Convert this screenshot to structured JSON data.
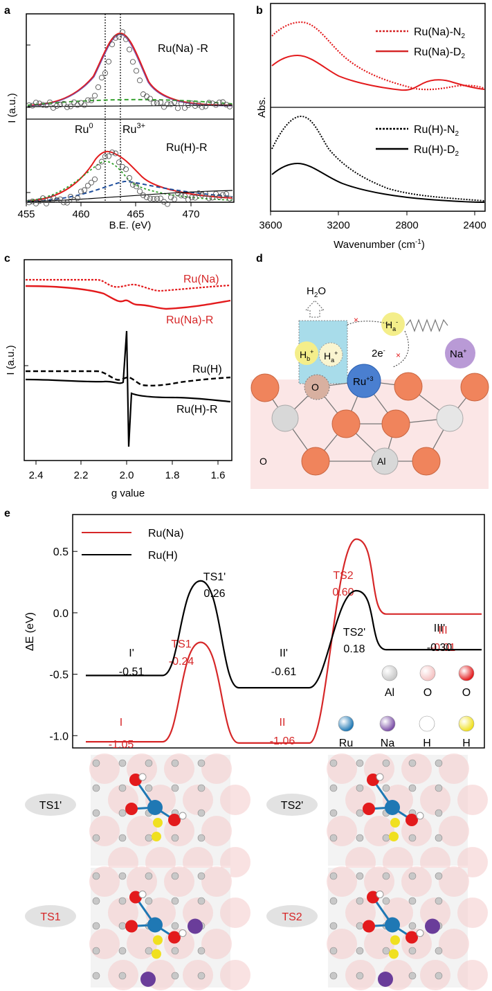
{
  "panels": {
    "a": {
      "letter": "a",
      "ylabel": "I (a.u.)",
      "xlabel": "B.E. (eV)",
      "xticks": [
        "455",
        "460",
        "465",
        "470"
      ],
      "label_top": "Ru(Na) -R",
      "label_bottom": "Ru(H)-R",
      "ru0": "Ru",
      "ru0_sup": "0",
      "ru3": "Ru",
      "ru3_sup": "3+"
    },
    "b": {
      "letter": "b",
      "ylabel": "Abs.",
      "xlabel": "Wavenumber (cm",
      "xlabel_sup": "-1",
      "xlabel_end": ")",
      "xticks": [
        "3600",
        "3200",
        "2800",
        "2400"
      ],
      "legend": [
        {
          "text": "Ru(Na)-N",
          "sub": "2",
          "color": "#d62728",
          "dash": true
        },
        {
          "text": "Ru(Na)-D",
          "sub": "2",
          "color": "#d62728",
          "dash": false
        },
        {
          "text": "Ru(H)-N",
          "sub": "2",
          "color": "#000000",
          "dash": true
        },
        {
          "text": "Ru(H)-D",
          "sub": "2",
          "color": "#000000",
          "dash": false
        }
      ]
    },
    "c": {
      "letter": "c",
      "ylabel": "I (a.u.)",
      "xlabel": "g value",
      "xticks": [
        "2.4",
        "2.2",
        "2.0",
        "1.8",
        "1.6"
      ],
      "labels": [
        "Ru(Na)",
        "Ru(Na)-R",
        "Ru(H)",
        "Ru(H)-R"
      ]
    },
    "d": {
      "letter": "d",
      "h2o": "H",
      "h2o_sub": "2",
      "h2o_end": "O",
      "hb": "H",
      "hb_sub": "b",
      "hb_sup": "+",
      "ha": "H",
      "ha_sub": "a",
      "ha_sup": "+",
      "ha_minus": "H",
      "ha_minus_sub": "a",
      "ha_minus_sup": "-",
      "na": "Na",
      "na_sup": "+",
      "ru": "Ru",
      "ru_sup": "+3",
      "electrons": "2e",
      "electrons_sup": "-",
      "o_label": "O",
      "o_label2": "O",
      "al_label": "Al"
    },
    "e": {
      "letter": "e",
      "ylabel": "ΔE (eV)",
      "legend": [
        {
          "name": "Ru(Na)",
          "color": "#d62728"
        },
        {
          "name": "Ru(H)",
          "color": "#000000"
        }
      ],
      "yticks": [
        "0.5",
        "0.0",
        "-0.5",
        "-1.0"
      ],
      "atom_legend": [
        {
          "label": "Al",
          "color": "#c8c8c8"
        },
        {
          "label": "O",
          "color": "#f4c2c2"
        },
        {
          "label": "O",
          "color": "#e31a1c"
        },
        {
          "label": "Ru",
          "color": "#1f78b4"
        },
        {
          "label": "Na",
          "color": "#7b4fa6"
        },
        {
          "label": "H",
          "color": "#ffffff"
        },
        {
          "label": "H",
          "color": "#f0e020"
        }
      ],
      "struct_labels": [
        "TS1'",
        "TS2'",
        "TS1",
        "TS2"
      ]
    }
  },
  "chart_data": [
    {
      "panel": "e",
      "type": "line",
      "ylabel": "ΔE (eV)",
      "ylim": [
        -1.1,
        0.8
      ],
      "series": [
        {
          "name": "Ru(Na)",
          "color": "#d62728",
          "points": [
            {
              "label": "I",
              "value": -1.05
            },
            {
              "label": "TS1",
              "value": -0.24
            },
            {
              "label": "II",
              "value": -1.06
            },
            {
              "label": "TS2",
              "value": 0.6
            },
            {
              "label": "III",
              "value": -0.01
            }
          ]
        },
        {
          "name": "Ru(H)",
          "color": "#000000",
          "points": [
            {
              "label": "I'",
              "value": -0.51
            },
            {
              "label": "TS1'",
              "value": 0.26
            },
            {
              "label": "II'",
              "value": -0.61
            },
            {
              "label": "TS2'",
              "value": 0.18
            },
            {
              "label": "III'",
              "value": -0.3
            }
          ]
        }
      ]
    },
    {
      "panel": "a",
      "type": "scatter",
      "xlabel": "B.E. (eV)",
      "xlim": [
        455,
        472.5
      ],
      "series": [
        {
          "name": "Ru(Na) -R",
          "peak": 462.9
        },
        {
          "name": "Ru(H)-R",
          "peak": 462.0
        }
      ],
      "vlines": [
        461.7,
        462.9
      ]
    },
    {
      "panel": "b",
      "type": "line",
      "xlabel": "Wavenumber (cm-1)",
      "xlim": [
        3600,
        2200
      ],
      "series": [
        {
          "name": "Ru(Na)-N2",
          "peak": 3450
        },
        {
          "name": "Ru(Na)-D2",
          "peak": 3480
        },
        {
          "name": "Ru(H)-N2",
          "peak": 3440
        },
        {
          "name": "Ru(H)-D2",
          "peak": 3450
        }
      ]
    },
    {
      "panel": "c",
      "type": "line",
      "xlabel": "g value",
      "xlim": [
        2.45,
        1.55
      ],
      "series": [
        {
          "name": "Ru(Na)"
        },
        {
          "name": "Ru(Na)-R"
        },
        {
          "name": "Ru(H)"
        },
        {
          "name": "Ru(H)-R"
        }
      ]
    }
  ]
}
